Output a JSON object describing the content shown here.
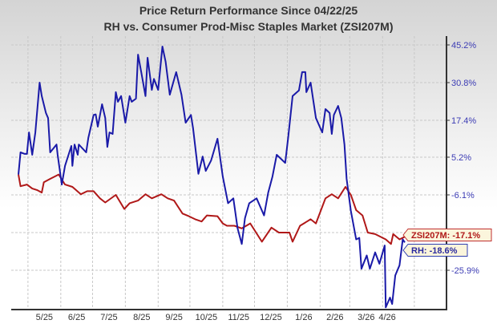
{
  "chart_data": {
    "type": "line",
    "title": "Price Return Performance Since 04/22/25",
    "subtitle": "RH  vs.  Consumer Prod-Misc Staples Market (ZSI207M)",
    "xlabel": "",
    "ylabel": "",
    "x_tick_labels": [
      "5/25",
      "6/25",
      "7/25",
      "8/25",
      "9/25",
      "10/25",
      "11/25",
      "12/25",
      "1/26",
      "2/26",
      "3/26",
      "4/26"
    ],
    "y_ticks": [
      45.2,
      30.8,
      17.4,
      5.2,
      -6.1,
      -25.9
    ],
    "y_tick_labels": [
      "45.2%",
      "30.8%",
      "17.4%",
      "5.2%",
      "-6.1%",
      "-25.9%"
    ],
    "xlim": [
      "2025-04-22",
      "2026-04-22"
    ],
    "ylim": [
      -35,
      45.2
    ],
    "y_axis_position": "right",
    "grid": true,
    "series": [
      {
        "name": "RH",
        "color": "#1a1aa8",
        "end_label": "RH: -18.6%",
        "points": [
          [
            "2025-04-22",
            0
          ],
          [
            "2025-04-24",
            6.8
          ],
          [
            "2025-04-28",
            6.3
          ],
          [
            "2025-04-30",
            6.3
          ],
          [
            "2025-05-02",
            13.4
          ],
          [
            "2025-05-05",
            6.0
          ],
          [
            "2025-05-08",
            13.4
          ],
          [
            "2025-05-12",
            30.8
          ],
          [
            "2025-05-14",
            26
          ],
          [
            "2025-05-18",
            20
          ],
          [
            "2025-05-20",
            18.2
          ],
          [
            "2025-05-22",
            6.8
          ],
          [
            "2025-05-28",
            9.4
          ],
          [
            "2025-05-29",
            6
          ],
          [
            "2025-06-02",
            -3
          ],
          [
            "2025-06-05",
            2.6
          ],
          [
            "2025-06-11",
            8.9
          ],
          [
            "2025-06-12",
            2.6
          ],
          [
            "2025-06-14",
            9.4
          ],
          [
            "2025-06-17",
            6
          ],
          [
            "2025-06-18",
            9.4
          ],
          [
            "2025-06-25",
            6.8
          ],
          [
            "2025-06-27",
            11.6
          ],
          [
            "2025-07-02",
            19.3
          ],
          [
            "2025-07-04",
            19.5
          ],
          [
            "2025-07-06",
            15.3
          ],
          [
            "2025-07-10",
            23.1
          ],
          [
            "2025-07-13",
            18.2
          ],
          [
            "2025-07-15",
            8.6
          ],
          [
            "2025-07-17",
            13.4
          ],
          [
            "2025-07-20",
            12.9
          ],
          [
            "2025-07-23",
            27.4
          ],
          [
            "2025-07-25",
            24
          ],
          [
            "2025-07-28",
            26
          ],
          [
            "2025-08-01",
            16.6
          ],
          [
            "2025-08-05",
            26
          ],
          [
            "2025-08-07",
            24
          ],
          [
            "2025-08-11",
            25.1
          ],
          [
            "2025-08-13",
            41.5
          ],
          [
            "2025-08-16",
            34.8
          ],
          [
            "2025-08-20",
            26
          ],
          [
            "2025-08-22",
            40.3
          ],
          [
            "2025-08-26",
            28.2
          ],
          [
            "2025-08-28",
            32.2
          ],
          [
            "2025-09-01",
            28.2
          ],
          [
            "2025-09-05",
            44.6
          ],
          [
            "2025-09-08",
            38.8
          ],
          [
            "2025-09-12",
            26.5
          ],
          [
            "2025-09-18",
            34.8
          ],
          [
            "2025-09-23",
            26.5
          ],
          [
            "2025-09-27",
            16.6
          ],
          [
            "2025-10-02",
            19.3
          ],
          [
            "2025-10-04",
            14.7
          ],
          [
            "2025-10-09",
            0.2
          ],
          [
            "2025-10-13",
            5.4
          ],
          [
            "2025-10-16",
            1.1
          ],
          [
            "2025-10-21",
            4.2
          ],
          [
            "2025-10-27",
            11.3
          ],
          [
            "2025-11-01",
            -0.6
          ],
          [
            "2025-11-06",
            -8.3
          ],
          [
            "2025-11-11",
            -7
          ],
          [
            "2025-11-15",
            -14.9
          ],
          [
            "2025-11-19",
            -19.0
          ],
          [
            "2025-11-22",
            -12.2
          ],
          [
            "2025-11-26",
            -8.3
          ],
          [
            "2025-12-03",
            -7
          ],
          [
            "2025-12-10",
            -11.5
          ],
          [
            "2025-12-14",
            -5.4
          ],
          [
            "2025-12-18",
            -0.6
          ],
          [
            "2025-12-22",
            6
          ],
          [
            "2025-12-30",
            3.5
          ],
          [
            "2026-01-02",
            12.2
          ],
          [
            "2026-01-06",
            26
          ],
          [
            "2026-01-12",
            28
          ],
          [
            "2026-01-15",
            34.8
          ],
          [
            "2026-01-18",
            34.8
          ],
          [
            "2026-01-19",
            27.4
          ],
          [
            "2026-01-23",
            30.8
          ],
          [
            "2026-01-28",
            18.2
          ],
          [
            "2026-02-03",
            13.4
          ],
          [
            "2026-02-06",
            21.4
          ],
          [
            "2026-02-10",
            20
          ],
          [
            "2026-02-12",
            12.9
          ],
          [
            "2026-02-14",
            19.3
          ],
          [
            "2026-02-18",
            22.5
          ],
          [
            "2026-02-21",
            18.2
          ],
          [
            "2026-02-24",
            9.4
          ],
          [
            "2026-02-26",
            -1.3
          ],
          [
            "2026-03-02",
            -10.3
          ],
          [
            "2026-03-07",
            -17.8
          ],
          [
            "2026-03-10",
            -17.4
          ],
          [
            "2026-03-12",
            -25.5
          ],
          [
            "2026-03-17",
            -22
          ],
          [
            "2026-03-20",
            -25.5
          ],
          [
            "2026-03-25",
            -21.2
          ],
          [
            "2026-03-29",
            -24.2
          ],
          [
            "2026-04-03",
            -19.4
          ],
          [
            "2026-04-04",
            -34.6
          ],
          [
            "2026-04-08",
            -32.3
          ],
          [
            "2026-04-10",
            -33.8
          ],
          [
            "2026-04-13",
            -27.1
          ],
          [
            "2026-04-17",
            -24.6
          ],
          [
            "2026-04-20",
            -17.8
          ],
          [
            "2026-04-22",
            -18.6
          ]
        ]
      },
      {
        "name": "ZSI207M",
        "color": "#b01818",
        "end_label": "ZSI207M: -17.1%",
        "points": [
          [
            "2025-04-22",
            0
          ],
          [
            "2025-04-24",
            -3.5
          ],
          [
            "2025-04-30",
            -3
          ],
          [
            "2025-05-05",
            -4.2
          ],
          [
            "2025-05-10",
            -4.7
          ],
          [
            "2025-05-14",
            -5.4
          ],
          [
            "2025-05-16",
            -2.3
          ],
          [
            "2025-05-22",
            -1.3
          ],
          [
            "2025-05-30",
            0
          ],
          [
            "2025-06-05",
            -3
          ],
          [
            "2025-06-12",
            -3.7
          ],
          [
            "2025-06-20",
            -5.9
          ],
          [
            "2025-06-26",
            -5
          ],
          [
            "2025-07-02",
            -5
          ],
          [
            "2025-07-08",
            -7
          ],
          [
            "2025-07-13",
            -8.1
          ],
          [
            "2025-07-23",
            -6.1
          ],
          [
            "2025-07-31",
            -9.8
          ],
          [
            "2025-08-05",
            -8.3
          ],
          [
            "2025-08-13",
            -7.6
          ],
          [
            "2025-08-20",
            -5.9
          ],
          [
            "2025-08-26",
            -7
          ],
          [
            "2025-09-04",
            -5.9
          ],
          [
            "2025-09-10",
            -7
          ],
          [
            "2025-09-16",
            -7.6
          ],
          [
            "2025-09-24",
            -11
          ],
          [
            "2025-09-30",
            -11.7
          ],
          [
            "2025-10-06",
            -12.5
          ],
          [
            "2025-10-12",
            -13.1
          ],
          [
            "2025-10-17",
            -11.5
          ],
          [
            "2025-10-27",
            -11.7
          ],
          [
            "2025-11-01",
            -13.6
          ],
          [
            "2025-11-05",
            -14.2
          ],
          [
            "2025-11-12",
            -14.2
          ],
          [
            "2025-11-19",
            -14.9
          ],
          [
            "2025-11-27",
            -13.6
          ],
          [
            "2025-12-08",
            -18.4
          ],
          [
            "2025-12-17",
            -14.7
          ],
          [
            "2025-12-24",
            -16
          ],
          [
            "2026-01-03",
            -16
          ],
          [
            "2026-01-06",
            -18.4
          ],
          [
            "2026-01-13",
            -14.2
          ],
          [
            "2026-01-23",
            -12.5
          ],
          [
            "2026-01-28",
            -13.6
          ],
          [
            "2026-02-06",
            -7
          ],
          [
            "2026-02-12",
            -5.9
          ],
          [
            "2026-02-18",
            -7
          ],
          [
            "2026-02-25",
            -3.7
          ],
          [
            "2026-03-02",
            -6.1
          ],
          [
            "2026-03-07",
            -10.1
          ],
          [
            "2026-03-13",
            -11.5
          ],
          [
            "2026-03-18",
            -16
          ],
          [
            "2026-03-25",
            -16.4
          ],
          [
            "2026-04-04",
            -17.8
          ],
          [
            "2026-04-09",
            -19
          ],
          [
            "2026-04-11",
            -16.4
          ],
          [
            "2026-04-17",
            -17.8
          ],
          [
            "2026-04-22",
            -17.1
          ]
        ]
      }
    ]
  }
}
